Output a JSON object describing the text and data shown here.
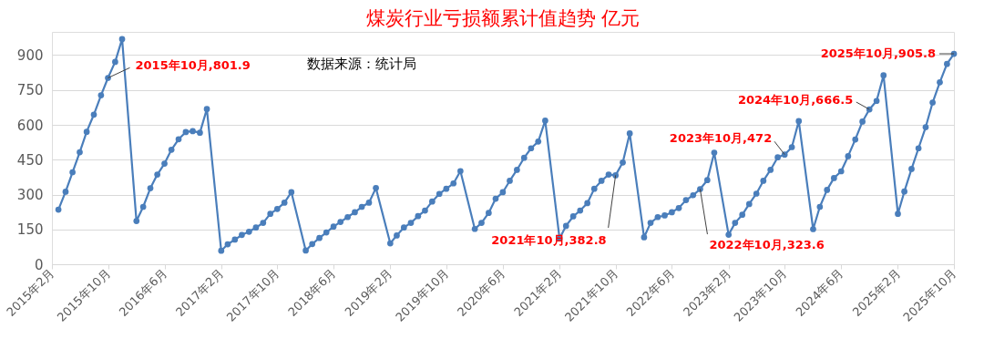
{
  "chart_data": {
    "type": "line",
    "title": "煤炭行业亏损额累计值趋势 亿元",
    "x": [
      "2015-03",
      "2015-04",
      "2015-05",
      "2015-06",
      "2015-07",
      "2015-08",
      "2015-09",
      "2015-10",
      "2015-11",
      "2015-12",
      "2016-02",
      "2016-03",
      "2016-04",
      "2016-05",
      "2016-06",
      "2016-07",
      "2016-08",
      "2016-09",
      "2016-10",
      "2016-11",
      "2016-12",
      "2017-02",
      "2017-03",
      "2017-04",
      "2017-05",
      "2017-06",
      "2017-07",
      "2017-08",
      "2017-09",
      "2017-10",
      "2017-11",
      "2017-12",
      "2018-02",
      "2018-03",
      "2018-04",
      "2018-05",
      "2018-06",
      "2018-07",
      "2018-08",
      "2018-09",
      "2018-10",
      "2018-11",
      "2018-12",
      "2019-02",
      "2019-03",
      "2019-04",
      "2019-05",
      "2019-06",
      "2019-07",
      "2019-08",
      "2019-09",
      "2019-10",
      "2019-11",
      "2019-12",
      "2020-02",
      "2020-03",
      "2020-04",
      "2020-05",
      "2020-06",
      "2020-07",
      "2020-08",
      "2020-09",
      "2020-10",
      "2020-11",
      "2020-12",
      "2021-02",
      "2021-03",
      "2021-04",
      "2021-05",
      "2021-06",
      "2021-07",
      "2021-08",
      "2021-09",
      "2021-10",
      "2021-11",
      "2021-12",
      "2022-02",
      "2022-03",
      "2022-04",
      "2022-05",
      "2022-06",
      "2022-07",
      "2022-08",
      "2022-09",
      "2022-10",
      "2022-11",
      "2022-12",
      "2023-02",
      "2023-03",
      "2023-04",
      "2023-05",
      "2023-06",
      "2023-07",
      "2023-08",
      "2023-09",
      "2023-10",
      "2023-11",
      "2023-12",
      "2024-02",
      "2024-03",
      "2024-04",
      "2024-05",
      "2024-06",
      "2024-07",
      "2024-08",
      "2024-09",
      "2024-10",
      "2024-11",
      "2024-12",
      "2025-02",
      "2025-03",
      "2025-04",
      "2025-05",
      "2025-06",
      "2025-07",
      "2025-08",
      "2025-09",
      "2025-10"
    ],
    "series": [
      {
        "color": "#4a7ebb",
        "values": [
          235,
          312,
          396,
          482,
          570,
          644,
          727,
          801.9,
          871,
          969,
          186,
          247,
          327,
          386,
          433,
          493,
          538,
          569,
          573,
          566,
          668,
          58,
          86,
          106,
          126,
          140,
          158,
          178,
          217,
          238,
          265,
          310,
          59,
          87,
          113,
          137,
          162,
          182,
          203,
          224,
          247,
          265,
          328,
          90,
          124,
          158,
          178,
          207,
          231,
          270,
          303,
          325,
          348,
          401,
          152,
          178,
          221,
          282,
          310,
          359,
          406,
          458,
          499,
          528,
          618,
          111,
          165,
          206,
          231,
          263,
          325,
          359,
          386,
          382.8,
          438,
          563,
          116,
          178,
          203,
          210,
          224,
          242,
          276,
          297,
          323.6,
          362,
          480,
          127,
          178,
          213,
          259,
          304,
          359,
          406,
          460,
          472,
          504,
          616,
          151,
          247,
          320,
          371,
          400,
          465,
          537,
          614,
          666.5,
          703,
          813,
          217,
          313,
          410,
          499,
          590,
          696,
          783,
          862,
          905.8
        ]
      }
    ],
    "xlim": [
      "2015-02",
      "2025-10"
    ],
    "xticks": [
      {
        "value": "2015-02",
        "label": "2015年2月"
      },
      {
        "value": "2015-10",
        "label": "2015年10月"
      },
      {
        "value": "2016-06",
        "label": "2016年6月"
      },
      {
        "value": "2017-02",
        "label": "2017年2月"
      },
      {
        "value": "2017-10",
        "label": "2017年10月"
      },
      {
        "value": "2018-06",
        "label": "2018年6月"
      },
      {
        "value": "2019-02",
        "label": "2019年2月"
      },
      {
        "value": "2019-10",
        "label": "2019年10月"
      },
      {
        "value": "2020-06",
        "label": "2020年6月"
      },
      {
        "value": "2021-02",
        "label": "2021年2月"
      },
      {
        "value": "2021-10",
        "label": "2021年10月"
      },
      {
        "value": "2022-06",
        "label": "2022年6月"
      },
      {
        "value": "2023-02",
        "label": "2023年2月"
      },
      {
        "value": "2023-10",
        "label": "2023年10月"
      },
      {
        "value": "2024-06",
        "label": "2024年6月"
      },
      {
        "value": "2025-02",
        "label": "2025年2月"
      },
      {
        "value": "2025-10",
        "label": "2025年10月"
      }
    ],
    "ylim": [
      0,
      1000
    ],
    "yticks": [
      0,
      150,
      300,
      450,
      600,
      750,
      900
    ],
    "grid": "y",
    "marker": "circle",
    "line_style": "solid",
    "legend": false,
    "annotations": [
      {
        "text": "2015年10月,801.9",
        "x": "2015-10",
        "y": 801.9
      },
      {
        "text": "2021年10月,382.8",
        "x": "2021-10",
        "y": 382.8
      },
      {
        "text": "2022年10月,323.6",
        "x": "2022-10",
        "y": 323.6
      },
      {
        "text": "2023年10月,472",
        "x": "2023-10",
        "y": 472
      },
      {
        "text": "2024年10月,666.5",
        "x": "2024-10",
        "y": 666.5
      },
      {
        "text": "2025年10月,905.8",
        "x": "2025-10",
        "y": 905.8
      },
      "数据来源：统计局"
    ]
  }
}
